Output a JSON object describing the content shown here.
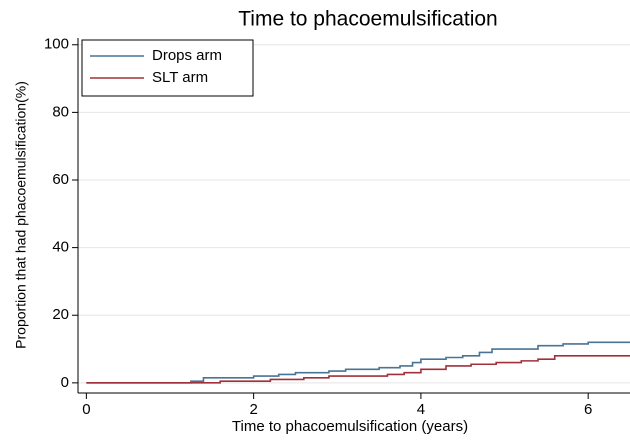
{
  "chart_data": {
    "type": "line",
    "step": "post",
    "title": "Time to phacoemulsification",
    "x_label": "Time to phacoemulsification (years)",
    "y_label": "Proportion that had phacoemulsification(%)",
    "xlim": [
      -0.1,
      6.5
    ],
    "ylim": [
      -3,
      102
    ],
    "xticks": [
      0,
      2,
      4,
      6
    ],
    "yticks": [
      0,
      20,
      40,
      60,
      80,
      100
    ],
    "grid": true,
    "legend": "upper left",
    "series": [
      {
        "name": "Drops arm",
        "color": "#4a7396",
        "x": [
          0,
          1.25,
          1.4,
          2.0,
          2.3,
          2.5,
          2.9,
          3.1,
          3.5,
          3.75,
          3.9,
          4.0,
          4.3,
          4.5,
          4.7,
          4.85,
          5.4,
          5.7,
          6.0,
          6.5
        ],
        "values": [
          0,
          0.5,
          1.5,
          2,
          2.5,
          3,
          3.5,
          4,
          4.5,
          5,
          6,
          7,
          7.5,
          8,
          9,
          10,
          11,
          11.5,
          12,
          12
        ]
      },
      {
        "name": "SLT arm",
        "color": "#a0303a",
        "x": [
          0,
          1.6,
          2.2,
          2.6,
          2.9,
          3.6,
          3.8,
          4.0,
          4.3,
          4.6,
          4.9,
          5.2,
          5.4,
          5.6,
          6.5
        ],
        "values": [
          0,
          0.5,
          1,
          1.5,
          2,
          2.5,
          3,
          4,
          5,
          5.5,
          6,
          6.5,
          7,
          8,
          8
        ]
      }
    ]
  }
}
